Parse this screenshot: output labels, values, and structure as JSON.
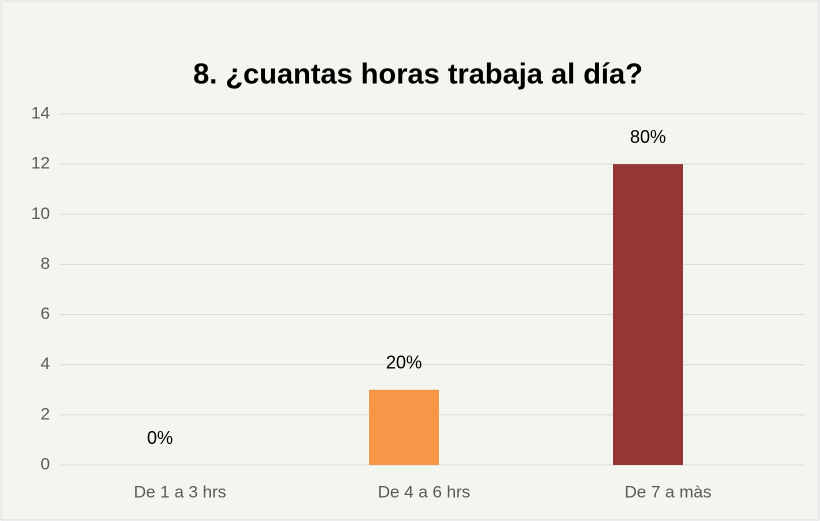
{
  "chart_data": {
    "type": "bar",
    "title": "8. ¿cuantas horas trabaja al día?",
    "categories": [
      "De 1 a 3 hrs",
      "De 4 a 6 hrs",
      "De 7 a màs"
    ],
    "values": [
      0,
      3,
      12
    ],
    "value_labels": [
      "0%",
      "20%",
      "80%"
    ],
    "colors": [
      "#4f81bd",
      "#f79646",
      "#943634"
    ],
    "ylim": [
      0,
      14
    ],
    "yticks": [
      0,
      2,
      4,
      6,
      8,
      10,
      12,
      14
    ],
    "grid": true
  }
}
